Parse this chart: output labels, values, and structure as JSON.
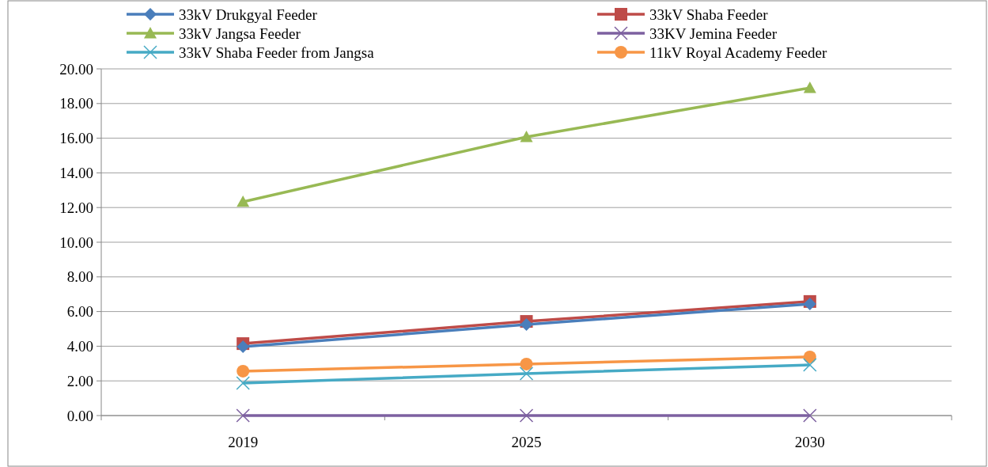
{
  "chart_data": {
    "type": "line",
    "categories": [
      "2019",
      "2025",
      "2030"
    ],
    "series": [
      {
        "name": "33kV Drukgyal Feeder",
        "color": "#4a7ebb",
        "marker": "diamond",
        "values": [
          3.97,
          5.25,
          6.44
        ]
      },
      {
        "name": "33kV Shaba Feeder",
        "color": "#be4b48",
        "marker": "square",
        "values": [
          4.15,
          5.43,
          6.58
        ]
      },
      {
        "name": "33kV Jangsa Feeder",
        "color": "#98b954",
        "marker": "triangle",
        "values": [
          12.33,
          16.07,
          18.9
        ]
      },
      {
        "name": "33KV Jemina Feeder",
        "color": "#7d60a0",
        "marker": "cross",
        "values": [
          0,
          0,
          0
        ]
      },
      {
        "name": "33kV Shaba Feeder from Jangsa",
        "color": "#46aac5",
        "marker": "cross",
        "values": [
          1.87,
          2.42,
          2.92
        ]
      },
      {
        "name": "11kV Royal Academy  Feeder",
        "color": "#f79646",
        "marker": "circle",
        "values": [
          2.56,
          2.97,
          3.38
        ]
      }
    ],
    "ylim": [
      0,
      20
    ],
    "yticks": [
      {
        "value": 0,
        "label": "0.00"
      },
      {
        "value": 2,
        "label": "2.00"
      },
      {
        "value": 4,
        "label": "4.00"
      },
      {
        "value": 6,
        "label": "6.00"
      },
      {
        "value": 8,
        "label": "8.00"
      },
      {
        "value": 10,
        "label": "10.00"
      },
      {
        "value": 12,
        "label": "12.00"
      },
      {
        "value": 14,
        "label": "14.00"
      },
      {
        "value": 16,
        "label": "16.00"
      },
      {
        "value": 18,
        "label": "18.00"
      },
      {
        "value": 20,
        "label": "20.00"
      }
    ],
    "grid": "y",
    "legend": "top",
    "line_style": "solid"
  }
}
